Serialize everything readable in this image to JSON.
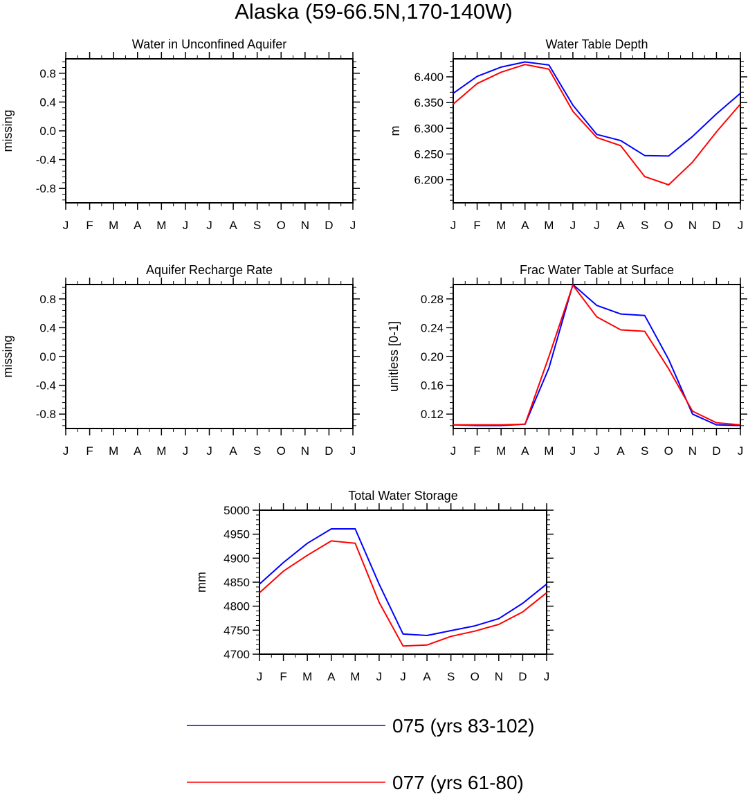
{
  "figure": {
    "title": "Alaska (59-66.5N,170-140W)",
    "legend": [
      {
        "label": "075 (yrs 83-102)",
        "color": "#0000ff"
      },
      {
        "label": "077 (yrs 61-80)",
        "color": "#ff0000"
      }
    ]
  },
  "chart_data": [
    {
      "type": "line",
      "title": "Water in Unconfined Aquifer",
      "ylabel": "missing",
      "x": [
        "J",
        "F",
        "M",
        "A",
        "M",
        "J",
        "J",
        "A",
        "S",
        "O",
        "N",
        "D",
        "J"
      ],
      "ylim": [
        -1.0,
        1.0
      ],
      "yticks": [
        "0.8",
        "0.4",
        "0.0",
        "-0.4",
        "-0.8"
      ],
      "grid": false,
      "series": []
    },
    {
      "type": "line",
      "title": "Water Table Depth",
      "ylabel": "m",
      "x": [
        "J",
        "F",
        "M",
        "A",
        "M",
        "J",
        "J",
        "A",
        "S",
        "O",
        "N",
        "D",
        "J"
      ],
      "ylim": [
        6.155,
        6.435
      ],
      "yticks": [
        "6.400",
        "6.350",
        "6.300",
        "6.250",
        "6.200"
      ],
      "grid": false,
      "series": [
        {
          "color": "#0000ff",
          "values": [
            6.368,
            6.401,
            6.419,
            6.429,
            6.423,
            6.345,
            6.288,
            6.276,
            6.247,
            6.246,
            6.284,
            6.328,
            6.368
          ]
        },
        {
          "color": "#ff0000",
          "values": [
            6.347,
            6.387,
            6.409,
            6.424,
            6.415,
            6.333,
            6.282,
            6.266,
            6.206,
            6.19,
            6.234,
            6.293,
            6.347
          ]
        }
      ]
    },
    {
      "type": "line",
      "title": "Aquifer Recharge Rate",
      "ylabel": "missing",
      "x": [
        "J",
        "F",
        "M",
        "A",
        "M",
        "J",
        "J",
        "A",
        "S",
        "O",
        "N",
        "D",
        "J"
      ],
      "ylim": [
        -1.0,
        1.0
      ],
      "yticks": [
        "0.8",
        "0.4",
        "0.0",
        "-0.4",
        "-0.8"
      ],
      "grid": false,
      "series": []
    },
    {
      "type": "line",
      "title": "Frac Water Table at Surface",
      "ylabel": "unitless [0-1]",
      "x": [
        "J",
        "F",
        "M",
        "A",
        "M",
        "J",
        "J",
        "A",
        "S",
        "O",
        "N",
        "D",
        "J"
      ],
      "ylim": [
        0.1,
        0.3
      ],
      "yticks": [
        "0.28",
        "0.24",
        "0.20",
        "0.16",
        "0.12"
      ],
      "grid": false,
      "series": [
        {
          "color": "#0000ff",
          "values": [
            0.105,
            0.104,
            0.104,
            0.106,
            0.184,
            0.3,
            0.271,
            0.259,
            0.257,
            0.196,
            0.12,
            0.105,
            0.104
          ]
        },
        {
          "color": "#ff0000",
          "values": [
            0.105,
            0.105,
            0.105,
            0.106,
            0.2,
            0.299,
            0.255,
            0.237,
            0.235,
            0.183,
            0.124,
            0.108,
            0.105
          ]
        }
      ]
    },
    {
      "type": "line",
      "title": "Total Water Storage",
      "ylabel": "mm",
      "x": [
        "J",
        "F",
        "M",
        "A",
        "M",
        "J",
        "J",
        "A",
        "S",
        "O",
        "N",
        "D",
        "J"
      ],
      "ylim": [
        4700,
        5000
      ],
      "yticks": [
        "5000",
        "4950",
        "4900",
        "4850",
        "4800",
        "4750",
        "4700"
      ],
      "grid": false,
      "series": [
        {
          "color": "#0000ff",
          "values": [
            4846,
            4891,
            4931,
            4961,
            4961,
            4846,
            4742,
            4739,
            4749,
            4759,
            4774,
            4806,
            4846
          ]
        },
        {
          "color": "#ff0000",
          "values": [
            4828,
            4873,
            4906,
            4936,
            4931,
            4808,
            4717,
            4719,
            4737,
            4748,
            4762,
            4788,
            4828
          ]
        }
      ]
    }
  ]
}
